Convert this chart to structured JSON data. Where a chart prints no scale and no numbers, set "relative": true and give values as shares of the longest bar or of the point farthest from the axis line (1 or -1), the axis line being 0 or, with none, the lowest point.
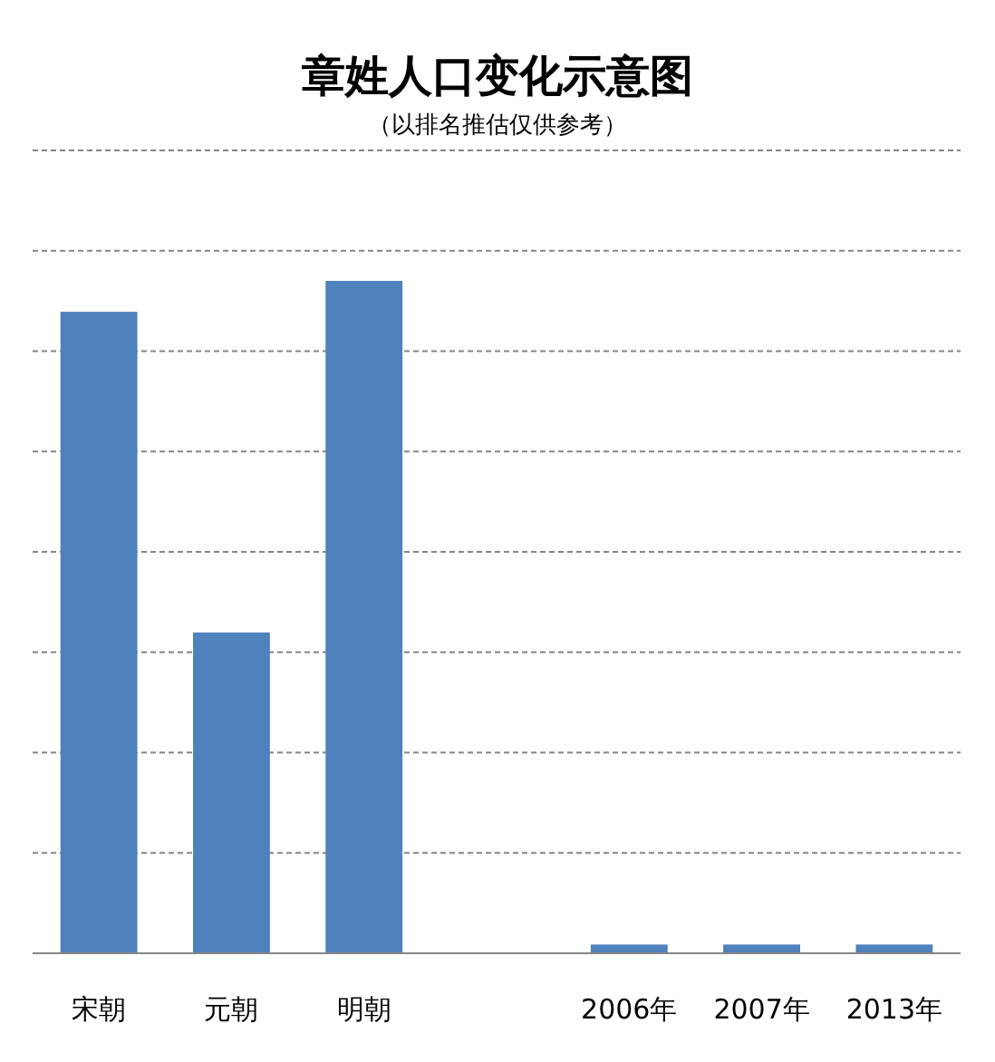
{
  "chart_data": {
    "type": "bar",
    "title": "章姓人口变化示意图",
    "subtitle": "（以排名推估仅供参考）",
    "categories": [
      "宋朝",
      "元朝",
      "明朝",
      null,
      "2006年",
      "2007年",
      "2013年"
    ],
    "values": [
      0.954,
      0.477,
      1,
      null,
      0.013,
      0.013,
      0.013
    ],
    "color": "#4f81bd",
    "relative": true,
    "grid": "y"
  }
}
